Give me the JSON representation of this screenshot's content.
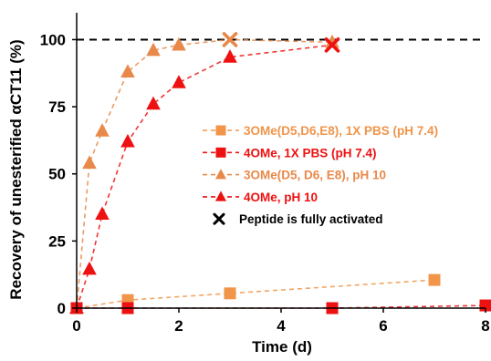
{
  "chart_data": {
    "type": "line",
    "xlabel": "Time (d)",
    "ylabel": "Recovery of unesterified αCT11 (%)",
    "xlim": [
      0,
      8
    ],
    "ylim": [
      0,
      110
    ],
    "xticks": [
      0,
      2,
      4,
      6,
      8
    ],
    "yticks": [
      0,
      25,
      50,
      75,
      100
    ],
    "reference_line": {
      "y": 100,
      "style": "dashed",
      "color": "#000000"
    },
    "grid": false,
    "legend_position": "right",
    "series": [
      {
        "name": "3OMe(D5,D6,E8), 1X PBS (pH 7.4)",
        "marker": "square",
        "color": "#F0954A",
        "x": [
          0,
          1,
          3,
          7
        ],
        "y": [
          0,
          3,
          5.5,
          10.5
        ]
      },
      {
        "name": "4OMe, 1X PBS (pH 7.4)",
        "marker": "square",
        "color": "#EE1111",
        "x": [
          0,
          1,
          5,
          8
        ],
        "y": [
          0,
          0,
          0,
          1
        ]
      },
      {
        "name": "3OMe(D5, D6, E8), pH 10",
        "marker": "triangle",
        "color": "#E8894A",
        "x": [
          0,
          0.25,
          0.5,
          1,
          1.5,
          2,
          3,
          5
        ],
        "y": [
          0,
          54,
          66,
          88,
          96,
          98,
          100,
          99
        ]
      },
      {
        "name": "4OMe, pH 10",
        "marker": "triangle",
        "color": "#EE1111",
        "x": [
          0,
          0.25,
          0.5,
          1,
          1.5,
          2,
          3,
          5
        ],
        "y": [
          0,
          14.5,
          35,
          62,
          76,
          84,
          93.5,
          98
        ]
      }
    ],
    "fully_activated_points": [
      {
        "series": "3OMe(D5, D6, E8), pH 10",
        "x": 3,
        "y": 100,
        "color": "#E8894A"
      },
      {
        "series": "4OMe, pH 10",
        "x": 5,
        "y": 98,
        "color": "#EE1111"
      }
    ],
    "legend_extra": {
      "label": "Peptide is fully activated",
      "marker": "x",
      "color": "#000000"
    }
  }
}
